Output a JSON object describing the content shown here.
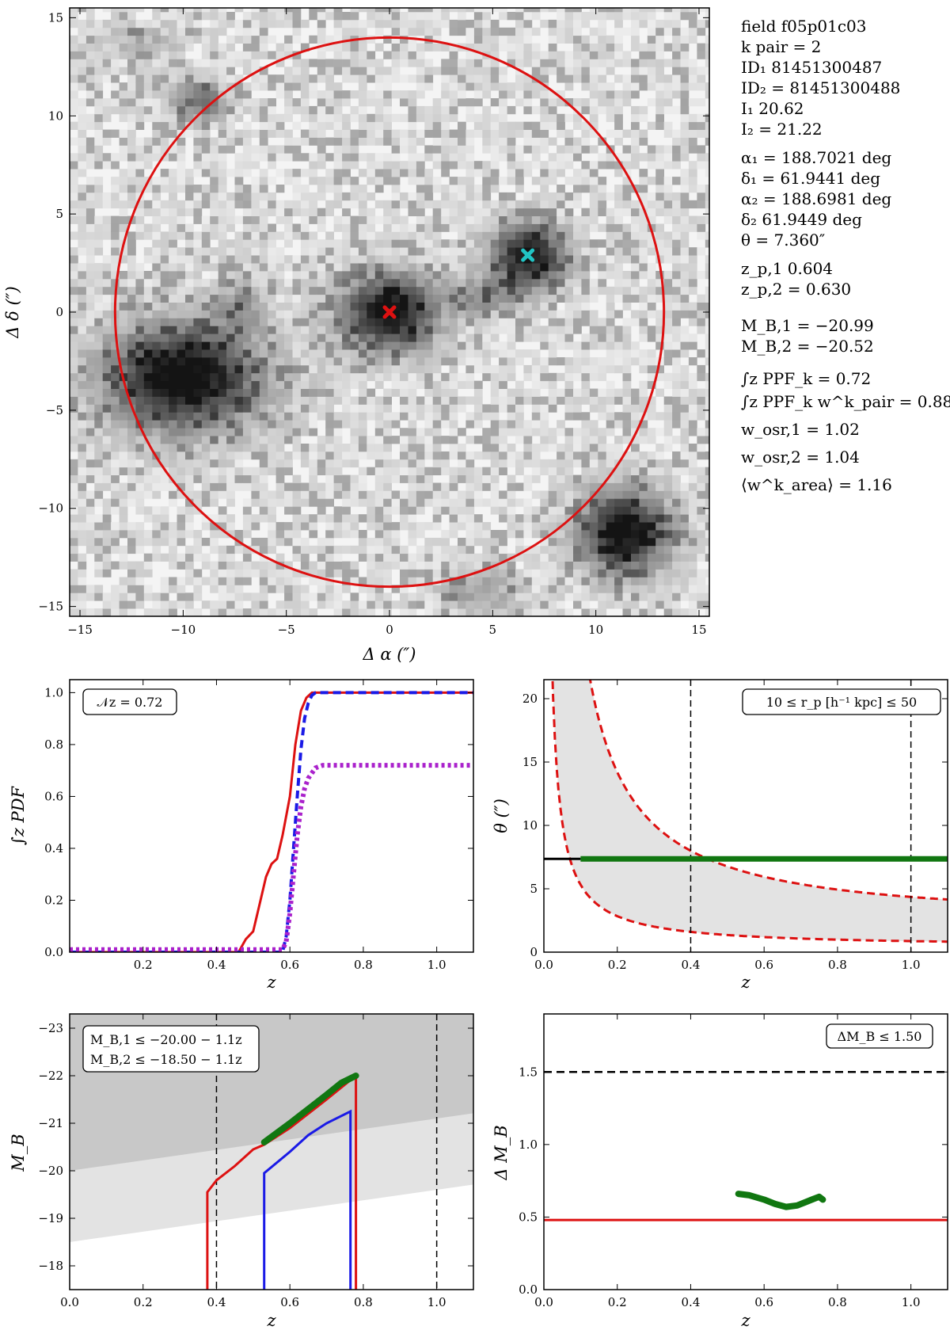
{
  "info": {
    "lines": [
      "field    f05p01c03",
      "k pair = 2",
      "ID₁    81451300487",
      "ID₂ = 81451300488",
      "I₁    20.62",
      "I₂ = 21.22",
      "α₁ = 188.7021 deg",
      "δ₁ = 61.9441 deg",
      "α₂ = 188.6981 deg",
      "δ₂    61.9449 deg",
      "θ = 7.360″",
      "z_p,1    0.604",
      "z_p,2 = 0.630",
      "M_B,1 = −20.99",
      "M_B,2 = −20.52",
      "∫z PPF_k = 0.72",
      "∫z PPF_k w^k_pair = 0.88",
      "w_osr,1 = 1.02",
      "w_osr,2 = 1.04",
      "⟨w^k_area⟩ = 1.16"
    ]
  },
  "colors": {
    "red": "#dd1111",
    "blue": "#1a1ae6",
    "green": "#117711",
    "cyan": "#22c4c4",
    "purple": "#aa22cc",
    "shade_dark": "#c8c8c8",
    "shade_light": "#e3e3e3"
  },
  "chart_data": [
    {
      "id": "image",
      "type": "image",
      "xlabel": "Δ α  (″)",
      "ylabel": "Δ δ  (″)",
      "xlim": [
        -15.5,
        15.5
      ],
      "ylim": [
        -15.5,
        15.5
      ],
      "xticks": [
        -15,
        -10,
        -5,
        0,
        5,
        10,
        15
      ],
      "yticks": [
        -15,
        -10,
        -5,
        0,
        5,
        10,
        15
      ],
      "circle": {
        "center": [
          0,
          0
        ],
        "radius": 13.3
      },
      "markers": [
        {
          "name": "galaxy 1",
          "x": 0,
          "y": 0,
          "color": "red"
        },
        {
          "name": "galaxy 2",
          "x": 6.7,
          "y": 2.9,
          "color": "cyan"
        }
      ],
      "blobs": [
        {
          "x": 0,
          "y": 0,
          "rx": 2.4,
          "ry": 2.0,
          "peak": 0.95
        },
        {
          "x": 6.7,
          "y": 2.9,
          "rx": 1.9,
          "ry": 1.7,
          "peak": 0.9
        },
        {
          "x": -10,
          "y": -3.3,
          "rx": 3.8,
          "ry": 2.8,
          "peak": 1.0
        },
        {
          "x": 11.4,
          "y": -11.2,
          "rx": 2.2,
          "ry": 2.2,
          "peak": 0.95
        },
        {
          "x": -9.2,
          "y": 10.8,
          "rx": 1.3,
          "ry": 1.0,
          "peak": 0.55
        },
        {
          "x": 4.6,
          "y": 0.8,
          "rx": 1.7,
          "ry": 1.0,
          "peak": 0.35
        },
        {
          "x": -7.2,
          "y": 0.4,
          "rx": 1.2,
          "ry": 1.4,
          "peak": 0.3
        },
        {
          "x": 4.4,
          "y": -14.2,
          "rx": 2.0,
          "ry": 1.2,
          "peak": 0.3
        },
        {
          "x": -12.0,
          "y": 13.9,
          "rx": 2.0,
          "ry": 0.9,
          "peak": 0.2
        }
      ]
    },
    {
      "id": "cum_pdf",
      "type": "line",
      "xlabel": "z",
      "ylabel": "∫z PDF",
      "xlim": [
        0,
        1.1
      ],
      "ylim": [
        0,
        1.05
      ],
      "xticks": [
        0.2,
        0.4,
        0.6,
        0.8,
        1.0
      ],
      "xtick_labels": [
        "0.2",
        "0.4",
        "0.6",
        "0.8",
        "1.0"
      ],
      "yticks": [
        0.0,
        0.2,
        0.4,
        0.6,
        0.8,
        1.0
      ],
      "ytick_labels": [
        "0.0",
        "0.2",
        "0.4",
        "0.6",
        "0.8",
        "1.0"
      ],
      "annotation": "𝒩z = 0.72",
      "series": [
        {
          "color": "red",
          "style": "solid",
          "x": [
            0,
            0.46,
            0.48,
            0.5,
            0.52,
            0.535,
            0.55,
            0.565,
            0.58,
            0.6,
            0.615,
            0.63,
            0.645,
            0.66,
            0.675,
            0.69,
            1.1
          ],
          "y": [
            0,
            0,
            0.05,
            0.08,
            0.2,
            0.29,
            0.34,
            0.36,
            0.45,
            0.6,
            0.8,
            0.93,
            0.98,
            1.0,
            1.0,
            1.0,
            1.0
          ]
        },
        {
          "color": "blue",
          "style": "dashed",
          "x": [
            0,
            0.58,
            0.59,
            0.6,
            0.61,
            0.62,
            0.63,
            0.64,
            0.65,
            0.66,
            0.67,
            0.68,
            1.1
          ],
          "y": [
            0,
            0,
            0.06,
            0.2,
            0.4,
            0.6,
            0.78,
            0.9,
            0.96,
            0.99,
            1.0,
            1.0,
            1.0
          ]
        },
        {
          "color": "purple",
          "style": "dotted",
          "x": [
            0,
            0.58,
            0.59,
            0.6,
            0.61,
            0.62,
            0.63,
            0.64,
            0.65,
            0.66,
            0.67,
            0.69,
            1.1
          ],
          "y": [
            0.01,
            0.01,
            0.04,
            0.15,
            0.3,
            0.45,
            0.56,
            0.63,
            0.67,
            0.69,
            0.71,
            0.72,
            0.72
          ]
        }
      ]
    },
    {
      "id": "theta_z",
      "type": "line",
      "xlabel": "z",
      "ylabel": "θ (″)",
      "xlim": [
        0,
        1.1
      ],
      "ylim": [
        0,
        21.5
      ],
      "xticks": [
        0.0,
        0.2,
        0.4,
        0.6,
        0.8,
        1.0
      ],
      "xtick_labels": [
        "0.0",
        "0.2",
        "0.4",
        "0.6",
        "0.8",
        "1.0"
      ],
      "yticks": [
        0,
        5,
        10,
        15,
        20
      ],
      "ytick_labels": [
        "0",
        "5",
        "10",
        "15",
        "20"
      ],
      "annotation": "10 ≤ r_p [h⁻¹ kpc] ≤ 50",
      "vlines": [
        0.4,
        1.0
      ],
      "theta_pair": 7.36,
      "valid_from": 0.1,
      "band": {
        "rp_min": 10,
        "rp_max": 50
      }
    },
    {
      "id": "mb_z",
      "type": "line",
      "xlabel": "z",
      "ylabel": "M_B",
      "xlim": [
        0,
        1.1
      ],
      "ylim": [
        -17.5,
        -23.3
      ],
      "xticks": [
        0.0,
        0.2,
        0.4,
        0.6,
        0.8,
        1.0
      ],
      "xtick_labels": [
        "0.0",
        "0.2",
        "0.4",
        "0.6",
        "0.8",
        "1.0"
      ],
      "yticks": [
        -18,
        -19,
        -20,
        -21,
        -22,
        -23
      ],
      "ytick_labels": [
        "−18",
        "−19",
        "−20",
        "−21",
        "−22",
        "−23"
      ],
      "legend": [
        "M_B,1 ≤ −20.00 − 1.1z",
        "M_B,2 ≤ −18.50 − 1.1z"
      ],
      "vlines": [
        0.4,
        1.0
      ],
      "cut1": {
        "a": -20.0,
        "b": -1.1
      },
      "cut2": {
        "a": -18.5,
        "b": -1.1
      },
      "series": [
        {
          "color": "red",
          "x": [
            0.375,
            0.375,
            0.4,
            0.45,
            0.5,
            0.53,
            0.6,
            0.7,
            0.78,
            0.78
          ],
          "y": [
            -17.5,
            -19.55,
            -19.8,
            -20.1,
            -20.45,
            -20.55,
            -20.9,
            -21.5,
            -22.0,
            -17.5
          ]
        },
        {
          "color": "blue",
          "x": [
            0.53,
            0.53,
            0.6,
            0.65,
            0.7,
            0.765,
            0.765
          ],
          "y": [
            -17.5,
            -19.95,
            -20.4,
            -20.75,
            -21.0,
            -21.25,
            -17.5
          ]
        },
        {
          "color": "green",
          "x": [
            0.53,
            0.6,
            0.65,
            0.7,
            0.74,
            0.78
          ],
          "y": [
            -20.6,
            -21.0,
            -21.3,
            -21.6,
            -21.85,
            -22.0
          ]
        }
      ]
    },
    {
      "id": "dmb_z",
      "type": "line",
      "xlabel": "z",
      "ylabel": "Δ M_B",
      "xlim": [
        0,
        1.1
      ],
      "ylim": [
        0,
        1.9
      ],
      "xticks": [
        0.0,
        0.2,
        0.4,
        0.6,
        0.8,
        1.0
      ],
      "xtick_labels": [
        "0.0",
        "0.2",
        "0.4",
        "0.6",
        "0.8",
        "1.0"
      ],
      "yticks": [
        0.0,
        0.5,
        1.0,
        1.5
      ],
      "ytick_labels": [
        "0.0",
        "0.5",
        "1.0",
        "1.5"
      ],
      "annotation": "ΔM_B ≤ 1.50",
      "hline_limit": 1.5,
      "hline_value": 0.48,
      "series": [
        {
          "color": "green",
          "x": [
            0.53,
            0.56,
            0.6,
            0.63,
            0.66,
            0.69,
            0.71,
            0.73,
            0.75,
            0.76
          ],
          "y": [
            0.66,
            0.65,
            0.62,
            0.59,
            0.57,
            0.58,
            0.6,
            0.62,
            0.64,
            0.62
          ]
        }
      ]
    }
  ]
}
